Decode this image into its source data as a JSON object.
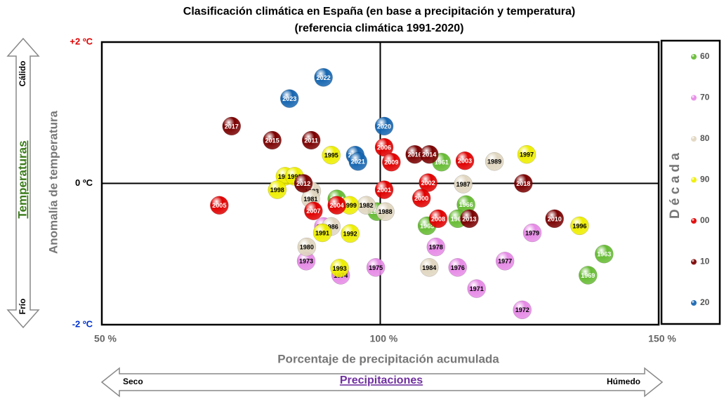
{
  "chart_data": {
    "type": "scatter",
    "title": "Clasificación climática en España (en base a precipitación y temperatura)",
    "subtitle": "(referencia climática 1991-2020)",
    "x_label": "Porcentaje de precipitación acumulada",
    "y_label": "Anomalía de temperatura",
    "legend_title": "D é c a d a",
    "temp_arrow": {
      "top": "Cálido",
      "middle": "Temperaturas",
      "bottom": "Frío"
    },
    "precip_arrow": {
      "left": "Seco",
      "middle": "Precipitaciones",
      "right": "Húmedo"
    },
    "xlim": [
      50,
      150
    ],
    "xticks": [
      {
        "value": 50,
        "label": "50 %"
      },
      {
        "value": 100,
        "label": "100 %"
      },
      {
        "value": 150,
        "label": "150 %"
      }
    ],
    "ylim": [
      -2,
      2
    ],
    "yticks": [
      {
        "value": -2,
        "label": "-2 ºC"
      },
      {
        "value": 0,
        "label": "0 ºC"
      },
      {
        "value": 2,
        "label": "+2 ºC"
      }
    ],
    "series": [
      {
        "name": "60",
        "color": "#66bb33",
        "labels": [
          "1964",
          "1961",
          "1968",
          "1966",
          "1967",
          "1965",
          "1963",
          "1969"
        ],
        "x": [
          92.2,
          111.0,
          99.4,
          115.4,
          113.9,
          108.4,
          140.2,
          137.3
        ],
        "values": [
          -0.22,
          0.3,
          -0.4,
          -0.3,
          -0.5,
          -0.6,
          -1.0,
          -1.3
        ]
      },
      {
        "name": "70",
        "color": "#e68ae6",
        "labels": [
          "1970",
          "1979",
          "1978",
          "1973",
          "1977",
          "1975",
          "1976",
          "1974",
          "1971",
          "1972"
        ],
        "x": [
          89.8,
          127.3,
          110.0,
          86.7,
          122.4,
          99.2,
          113.9,
          92.9,
          117.3,
          125.5
        ],
        "values": [
          -0.61,
          -0.7,
          -0.9,
          -1.1,
          -1.1,
          -1.19,
          -1.19,
          -1.3,
          -1.49,
          -1.79
        ]
      },
      {
        "name": "80",
        "color": "#e0d6c0",
        "labels": [
          "1989",
          "1983",
          "1981",
          "1982",
          "1988",
          "1987",
          "1986",
          "1980",
          "1984"
        ],
        "x": [
          120.5,
          87.7,
          87.5,
          97.5,
          100.9,
          114.9,
          91.2,
          86.8,
          108.8
        ],
        "values": [
          0.31,
          -0.11,
          -0.22,
          -0.31,
          -0.4,
          -0.01,
          -0.61,
          -0.9,
          -1.19
        ]
      },
      {
        "name": "90",
        "color": "#eeee00",
        "labels": [
          "1995",
          "1997",
          "1994",
          "1990",
          "1998",
          "1999",
          "1996",
          "1991",
          "1992",
          "1993"
        ],
        "x": [
          91.2,
          126.3,
          82.9,
          84.6,
          81.5,
          94.5,
          135.8,
          89.6,
          94.6,
          92.7
        ],
        "values": [
          0.4,
          0.41,
          0.1,
          0.1,
          -0.09,
          -0.31,
          -0.6,
          -0.7,
          -0.71,
          -1.2
        ]
      },
      {
        "name": "00",
        "color": "#e00000",
        "labels": [
          "2006",
          "2009",
          "2003",
          "2005",
          "2004",
          "2007",
          "2001",
          "2002",
          "2000",
          "2008"
        ],
        "x": [
          100.7,
          102.0,
          115.2,
          71.1,
          92.2,
          88.0,
          100.7,
          108.6,
          107.4,
          110.4
        ],
        "values": [
          0.51,
          0.3,
          0.32,
          -0.31,
          -0.31,
          -0.39,
          -0.09,
          0.01,
          -0.21,
          -0.5
        ]
      },
      {
        "name": "10",
        "color": "#7a0000",
        "labels": [
          "2017",
          "2015",
          "2011",
          "2016",
          "2014",
          "2012",
          "2018",
          "2013",
          "2010"
        ],
        "x": [
          73.3,
          80.6,
          87.6,
          106.2,
          108.8,
          86.2,
          125.7,
          116.0,
          131.3
        ],
        "values": [
          0.81,
          0.61,
          0.61,
          0.41,
          0.41,
          0.0,
          0.0,
          -0.5,
          -0.5
        ]
      },
      {
        "name": "20",
        "color": "#1565b0",
        "labels": [
          "2022",
          "2023",
          "2020",
          "2019",
          "2021"
        ],
        "x": [
          89.8,
          83.7,
          100.7,
          95.5,
          96.0
        ],
        "values": [
          1.5,
          1.2,
          0.81,
          0.4,
          0.31
        ]
      }
    ]
  }
}
